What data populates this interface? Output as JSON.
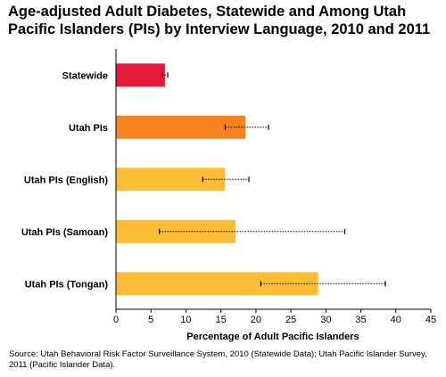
{
  "chart_data": {
    "type": "bar",
    "orientation": "horizontal",
    "title": "Age-adjusted Adult Diabetes, Statewide and Among Utah Pacific Islanders (PIs) by Interview Language, 2010 and 2011",
    "categories": [
      "Statewide",
      "Utah PIs",
      "Utah PIs (English)",
      "Utah PIs (Samoan)",
      "Utah PIs (Tongan)"
    ],
    "values": [
      7.0,
      18.5,
      15.6,
      17.1,
      28.9
    ],
    "ci_lower": [
      6.6,
      15.6,
      12.4,
      6.2,
      20.7
    ],
    "ci_upper": [
      7.4,
      21.8,
      19.0,
      32.7,
      38.5
    ],
    "colors": [
      "#E8193A",
      "#F6821F",
      "#FDBD34",
      "#FDBD34",
      "#FDBD34"
    ],
    "xlabel": "Percentage of Adult Pacific Islanders",
    "ylabel": "",
    "xlim": [
      0,
      45
    ],
    "xticks": [
      0,
      5,
      10,
      15,
      20,
      25,
      30,
      35,
      40,
      45
    ],
    "grid": false,
    "legend": "none",
    "source": "Source: Utah Behavioral Risk Factor Surveillance System, 2010 (Statewide Data); Utah Pacific Islander Survey, 2011 (Pacific Islander Data)."
  }
}
